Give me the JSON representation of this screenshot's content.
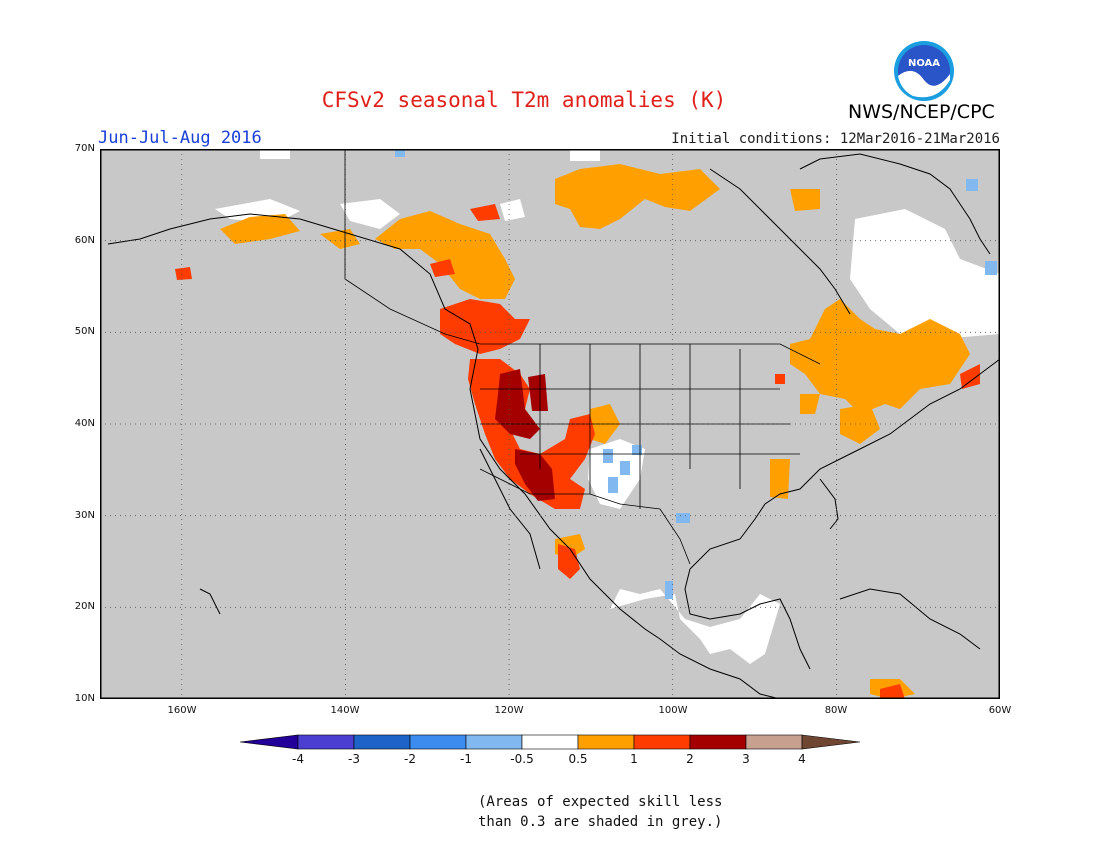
{
  "title": "CFSv2 seasonal T2m anomalies (K)",
  "period": "Jun-Jul-Aug 2016",
  "initial_conditions": "Initial conditions: 12Mar2016-21Mar2016",
  "organization": "NWS/NCEP/CPC",
  "logo_text": "NOAA",
  "lat_labels": [
    "70N",
    "60N",
    "50N",
    "40N",
    "30N",
    "20N",
    "10N"
  ],
  "lon_labels": [
    "160W",
    "140W",
    "120W",
    "100W",
    "80W",
    "60W"
  ],
  "colorbar": {
    "tick_labels": [
      "-4",
      "-3",
      "-2",
      "-1",
      "-0.5",
      "0.5",
      "1",
      "2",
      "3",
      "4"
    ],
    "colors": [
      "#24009a",
      "#4a3fd0",
      "#1e64c8",
      "#3c8cf0",
      "#82b8f0",
      "#ffffff",
      "#ffa000",
      "#ff3c00",
      "#a50000",
      "#c8a090",
      "#6e4632"
    ]
  },
  "note_lines": [
    "(Areas of expected skill less",
    "than 0.3 are shaded in grey.)"
  ],
  "colors": {
    "no_skill": "#c8c8c8",
    "title": "#e0201a",
    "period": "#1a3fd8"
  }
}
